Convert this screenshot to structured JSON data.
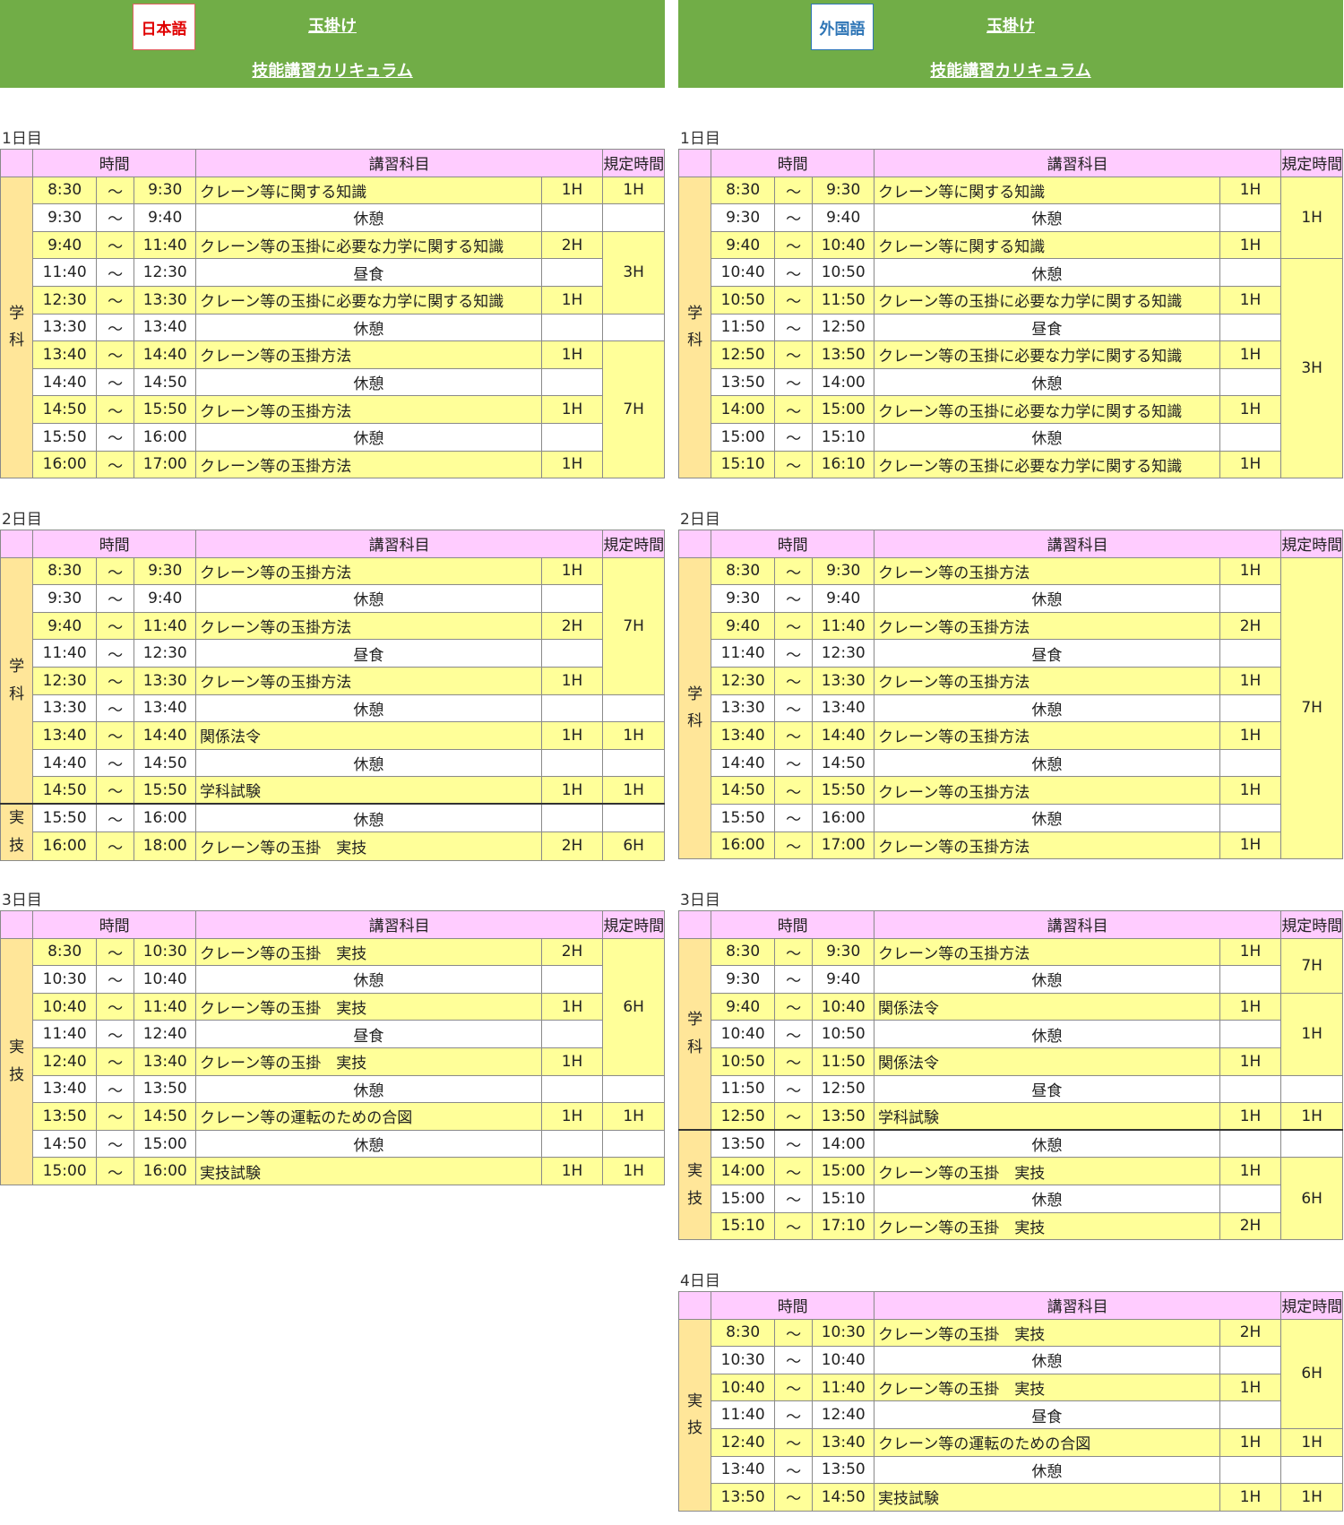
{
  "headers": [
    {
      "lang_button": "日本語",
      "lang_type": "ja",
      "link_top": "玉掛け",
      "link_bottom": "技能講習カリキュラム"
    },
    {
      "lang_button": "外国語",
      "lang_type": "foreign",
      "link_top": "玉掛け",
      "link_bottom": "技能講習カリキュラム"
    }
  ],
  "table_header": {
    "time": "時間",
    "subject": "講習科目",
    "required": "規定時間"
  },
  "colors": {
    "header_green": "#71ad47",
    "header_pink": "#ffccff",
    "row_yellow": "#ffff99",
    "category_orange": "#ffe699",
    "lang_ja_red": "#e00000",
    "lang_foreign_blue": "#2e75b6"
  },
  "columns": [
    {
      "days": [
        {
          "label": "1日目",
          "rows": [
            {
              "start": "8:30",
              "sep": "～",
              "end": "9:30",
              "subject": "クレーン等に関する知識",
              "hours": "1H",
              "hl": true
            },
            {
              "start": "9:30",
              "sep": "～",
              "end": "9:40",
              "subject": "休憩",
              "hours": "",
              "hl": false
            },
            {
              "start": "9:40",
              "sep": "～",
              "end": "11:40",
              "subject": "クレーン等の玉掛に必要な力学に関する知識",
              "hours": "2H",
              "hl": true
            },
            {
              "start": "11:40",
              "sep": "～",
              "end": "12:30",
              "subject": "昼食",
              "hours": "",
              "hl": false
            },
            {
              "start": "12:30",
              "sep": "～",
              "end": "13:30",
              "subject": "クレーン等の玉掛に必要な力学に関する知識",
              "hours": "1H",
              "hl": true
            },
            {
              "start": "13:30",
              "sep": "～",
              "end": "13:40",
              "subject": "休憩",
              "hours": "",
              "hl": false
            },
            {
              "start": "13:40",
              "sep": "～",
              "end": "14:40",
              "subject": "クレーン等の玉掛方法",
              "hours": "1H",
              "hl": true
            },
            {
              "start": "14:40",
              "sep": "～",
              "end": "14:50",
              "subject": "休憩",
              "hours": "",
              "hl": false
            },
            {
              "start": "14:50",
              "sep": "～",
              "end": "15:50",
              "subject": "クレーン等の玉掛方法",
              "hours": "1H",
              "hl": true
            },
            {
              "start": "15:50",
              "sep": "～",
              "end": "16:00",
              "subject": "休憩",
              "hours": "",
              "hl": false
            },
            {
              "start": "16:00",
              "sep": "～",
              "end": "17:00",
              "subject": "クレーン等の玉掛方法",
              "hours": "1H",
              "hl": true
            }
          ],
          "categories": [
            {
              "text": "学科",
              "span": 11
            }
          ],
          "required": [
            {
              "text": "1H",
              "span": 1
            },
            {
              "text": "",
              "span": 1
            },
            {
              "text": "3H",
              "span": 3
            },
            {
              "text": "",
              "span": 1
            },
            {
              "text": "7H",
              "span": 5
            }
          ]
        },
        {
          "label": "2日目",
          "rows": [
            {
              "start": "8:30",
              "sep": "～",
              "end": "9:30",
              "subject": "クレーン等の玉掛方法",
              "hours": "1H",
              "hl": true
            },
            {
              "start": "9:30",
              "sep": "～",
              "end": "9:40",
              "subject": "休憩",
              "hours": "",
              "hl": false
            },
            {
              "start": "9:40",
              "sep": "～",
              "end": "11:40",
              "subject": "クレーン等の玉掛方法",
              "hours": "2H",
              "hl": true
            },
            {
              "start": "11:40",
              "sep": "～",
              "end": "12:30",
              "subject": "昼食",
              "hours": "",
              "hl": false
            },
            {
              "start": "12:30",
              "sep": "～",
              "end": "13:30",
              "subject": "クレーン等の玉掛方法",
              "hours": "1H",
              "hl": true
            },
            {
              "start": "13:30",
              "sep": "～",
              "end": "13:40",
              "subject": "休憩",
              "hours": "",
              "hl": false
            },
            {
              "start": "13:40",
              "sep": "～",
              "end": "14:40",
              "subject": "関係法令",
              "hours": "1H",
              "hl": true
            },
            {
              "start": "14:40",
              "sep": "～",
              "end": "14:50",
              "subject": "休憩",
              "hours": "",
              "hl": false
            },
            {
              "start": "14:50",
              "sep": "～",
              "end": "15:50",
              "subject": "学科試験",
              "hours": "1H",
              "hl": true
            },
            {
              "start": "15:50",
              "sep": "～",
              "end": "16:00",
              "subject": "休憩",
              "hours": "",
              "hl": false
            },
            {
              "start": "16:00",
              "sep": "～",
              "end": "18:00",
              "subject": "クレーン等の玉掛　実技",
              "hours": "2H",
              "hl": true
            }
          ],
          "categories": [
            {
              "text": "学科",
              "span": 9
            },
            {
              "text": "実技",
              "span": 2
            }
          ],
          "required": [
            {
              "text": "7H",
              "span": 5
            },
            {
              "text": "",
              "span": 1
            },
            {
              "text": "1H",
              "span": 1
            },
            {
              "text": "",
              "span": 1
            },
            {
              "text": "1H",
              "span": 1
            },
            {
              "text": "",
              "span": 1
            },
            {
              "text": "6H",
              "span": 1
            }
          ]
        },
        {
          "label": "3日目",
          "rows": [
            {
              "start": "8:30",
              "sep": "～",
              "end": "10:30",
              "subject": "クレーン等の玉掛　実技",
              "hours": "2H",
              "hl": true
            },
            {
              "start": "10:30",
              "sep": "～",
              "end": "10:40",
              "subject": "休憩",
              "hours": "",
              "hl": false
            },
            {
              "start": "10:40",
              "sep": "～",
              "end": "11:40",
              "subject": "クレーン等の玉掛　実技",
              "hours": "1H",
              "hl": true
            },
            {
              "start": "11:40",
              "sep": "～",
              "end": "12:40",
              "subject": "昼食",
              "hours": "",
              "hl": false
            },
            {
              "start": "12:40",
              "sep": "～",
              "end": "13:40",
              "subject": "クレーン等の玉掛　実技",
              "hours": "1H",
              "hl": true
            },
            {
              "start": "13:40",
              "sep": "～",
              "end": "13:50",
              "subject": "休憩",
              "hours": "",
              "hl": false
            },
            {
              "start": "13:50",
              "sep": "～",
              "end": "14:50",
              "subject": "クレーン等の運転のための合図",
              "hours": "1H",
              "hl": true
            },
            {
              "start": "14:50",
              "sep": "～",
              "end": "15:00",
              "subject": "休憩",
              "hours": "",
              "hl": false
            },
            {
              "start": "15:00",
              "sep": "～",
              "end": "16:00",
              "subject": "実技試験",
              "hours": "1H",
              "hl": true
            }
          ],
          "categories": [
            {
              "text": "実技",
              "span": 9
            }
          ],
          "required": [
            {
              "text": "6H",
              "span": 5
            },
            {
              "text": "",
              "span": 1
            },
            {
              "text": "1H",
              "span": 1
            },
            {
              "text": "",
              "span": 1
            },
            {
              "text": "1H",
              "span": 1
            }
          ]
        }
      ]
    },
    {
      "days": [
        {
          "label": "1日目",
          "rows": [
            {
              "start": "8:30",
              "sep": "～",
              "end": "9:30",
              "subject": "クレーン等に関する知識",
              "hours": "1H",
              "hl": true
            },
            {
              "start": "9:30",
              "sep": "～",
              "end": "9:40",
              "subject": "休憩",
              "hours": "",
              "hl": false
            },
            {
              "start": "9:40",
              "sep": "～",
              "end": "10:40",
              "subject": "クレーン等に関する知識",
              "hours": "1H",
              "hl": true
            },
            {
              "start": "10:40",
              "sep": "～",
              "end": "10:50",
              "subject": "休憩",
              "hours": "",
              "hl": false
            },
            {
              "start": "10:50",
              "sep": "～",
              "end": "11:50",
              "subject": "クレーン等の玉掛に必要な力学に関する知識",
              "hours": "1H",
              "hl": true
            },
            {
              "start": "11:50",
              "sep": "～",
              "end": "12:50",
              "subject": "昼食",
              "hours": "",
              "hl": false
            },
            {
              "start": "12:50",
              "sep": "～",
              "end": "13:50",
              "subject": "クレーン等の玉掛に必要な力学に関する知識",
              "hours": "1H",
              "hl": true
            },
            {
              "start": "13:50",
              "sep": "～",
              "end": "14:00",
              "subject": "休憩",
              "hours": "",
              "hl": false
            },
            {
              "start": "14:00",
              "sep": "～",
              "end": "15:00",
              "subject": "クレーン等の玉掛に必要な力学に関する知識",
              "hours": "1H",
              "hl": true
            },
            {
              "start": "15:00",
              "sep": "～",
              "end": "15:10",
              "subject": "休憩",
              "hours": "",
              "hl": false
            },
            {
              "start": "15:10",
              "sep": "～",
              "end": "16:10",
              "subject": "クレーン等の玉掛に必要な力学に関する知識",
              "hours": "1H",
              "hl": true
            }
          ],
          "categories": [
            {
              "text": "学科",
              "span": 11
            }
          ],
          "required": [
            {
              "text": "1H",
              "span": 3
            },
            {
              "text": "3H",
              "span": 8
            }
          ]
        },
        {
          "label": "2日目",
          "rows": [
            {
              "start": "8:30",
              "sep": "～",
              "end": "9:30",
              "subject": "クレーン等の玉掛方法",
              "hours": "1H",
              "hl": true
            },
            {
              "start": "9:30",
              "sep": "～",
              "end": "9:40",
              "subject": "休憩",
              "hours": "",
              "hl": false
            },
            {
              "start": "9:40",
              "sep": "～",
              "end": "11:40",
              "subject": "クレーン等の玉掛方法",
              "hours": "2H",
              "hl": true
            },
            {
              "start": "11:40",
              "sep": "～",
              "end": "12:30",
              "subject": "昼食",
              "hours": "",
              "hl": false
            },
            {
              "start": "12:30",
              "sep": "～",
              "end": "13:30",
              "subject": "クレーン等の玉掛方法",
              "hours": "1H",
              "hl": true
            },
            {
              "start": "13:30",
              "sep": "～",
              "end": "13:40",
              "subject": "休憩",
              "hours": "",
              "hl": false
            },
            {
              "start": "13:40",
              "sep": "～",
              "end": "14:40",
              "subject": "クレーン等の玉掛方法",
              "hours": "1H",
              "hl": true
            },
            {
              "start": "14:40",
              "sep": "～",
              "end": "14:50",
              "subject": "休憩",
              "hours": "",
              "hl": false
            },
            {
              "start": "14:50",
              "sep": "～",
              "end": "15:50",
              "subject": "クレーン等の玉掛方法",
              "hours": "1H",
              "hl": true
            },
            {
              "start": "15:50",
              "sep": "～",
              "end": "16:00",
              "subject": "休憩",
              "hours": "",
              "hl": false
            },
            {
              "start": "16:00",
              "sep": "～",
              "end": "17:00",
              "subject": "クレーン等の玉掛方法",
              "hours": "1H",
              "hl": true
            }
          ],
          "categories": [
            {
              "text": "学科",
              "span": 11
            }
          ],
          "required": [
            {
              "text": "7H",
              "span": 11
            }
          ]
        },
        {
          "label": "3日目",
          "rows": [
            {
              "start": "8:30",
              "sep": "～",
              "end": "9:30",
              "subject": "クレーン等の玉掛方法",
              "hours": "1H",
              "hl": true
            },
            {
              "start": "9:30",
              "sep": "～",
              "end": "9:40",
              "subject": "休憩",
              "hours": "",
              "hl": false
            },
            {
              "start": "9:40",
              "sep": "～",
              "end": "10:40",
              "subject": "関係法令",
              "hours": "1H",
              "hl": true
            },
            {
              "start": "10:40",
              "sep": "～",
              "end": "10:50",
              "subject": "休憩",
              "hours": "",
              "hl": false
            },
            {
              "start": "10:50",
              "sep": "～",
              "end": "11:50",
              "subject": "関係法令",
              "hours": "1H",
              "hl": true
            },
            {
              "start": "11:50",
              "sep": "～",
              "end": "12:50",
              "subject": "昼食",
              "hours": "",
              "hl": false
            },
            {
              "start": "12:50",
              "sep": "～",
              "end": "13:50",
              "subject": "学科試験",
              "hours": "1H",
              "hl": true
            },
            {
              "start": "13:50",
              "sep": "～",
              "end": "14:00",
              "subject": "休憩",
              "hours": "",
              "hl": false
            },
            {
              "start": "14:00",
              "sep": "～",
              "end": "15:00",
              "subject": "クレーン等の玉掛　実技",
              "hours": "1H",
              "hl": true
            },
            {
              "start": "15:00",
              "sep": "～",
              "end": "15:10",
              "subject": "休憩",
              "hours": "",
              "hl": false
            },
            {
              "start": "15:10",
              "sep": "～",
              "end": "17:10",
              "subject": "クレーン等の玉掛　実技",
              "hours": "2H",
              "hl": true
            }
          ],
          "categories": [
            {
              "text": "学科",
              "span": 7
            },
            {
              "text": "実技",
              "span": 4
            }
          ],
          "required": [
            {
              "text": "7H",
              "span": 2
            },
            {
              "text": "1H",
              "span": 3
            },
            {
              "text": "",
              "span": 1
            },
            {
              "text": "1H",
              "span": 1
            },
            {
              "text": "",
              "span": 1
            },
            {
              "text": "6H",
              "span": 3
            }
          ]
        },
        {
          "label": "4日目",
          "rows": [
            {
              "start": "8:30",
              "sep": "～",
              "end": "10:30",
              "subject": "クレーン等の玉掛　実技",
              "hours": "2H",
              "hl": true
            },
            {
              "start": "10:30",
              "sep": "～",
              "end": "10:40",
              "subject": "休憩",
              "hours": "",
              "hl": false
            },
            {
              "start": "10:40",
              "sep": "～",
              "end": "11:40",
              "subject": "クレーン等の玉掛　実技",
              "hours": "1H",
              "hl": true
            },
            {
              "start": "11:40",
              "sep": "～",
              "end": "12:40",
              "subject": "昼食",
              "hours": "",
              "hl": false
            },
            {
              "start": "12:40",
              "sep": "～",
              "end": "13:40",
              "subject": "クレーン等の運転のための合図",
              "hours": "1H",
              "hl": true
            },
            {
              "start": "13:40",
              "sep": "～",
              "end": "13:50",
              "subject": "休憩",
              "hours": "",
              "hl": false
            },
            {
              "start": "13:50",
              "sep": "～",
              "end": "14:50",
              "subject": "実技試験",
              "hours": "1H",
              "hl": true
            }
          ],
          "categories": [
            {
              "text": "実技",
              "span": 7
            }
          ],
          "required": [
            {
              "text": "6H",
              "span": 4
            },
            {
              "text": "1H",
              "span": 1
            },
            {
              "text": "",
              "span": 1
            },
            {
              "text": "1H",
              "span": 1
            }
          ]
        }
      ]
    }
  ]
}
